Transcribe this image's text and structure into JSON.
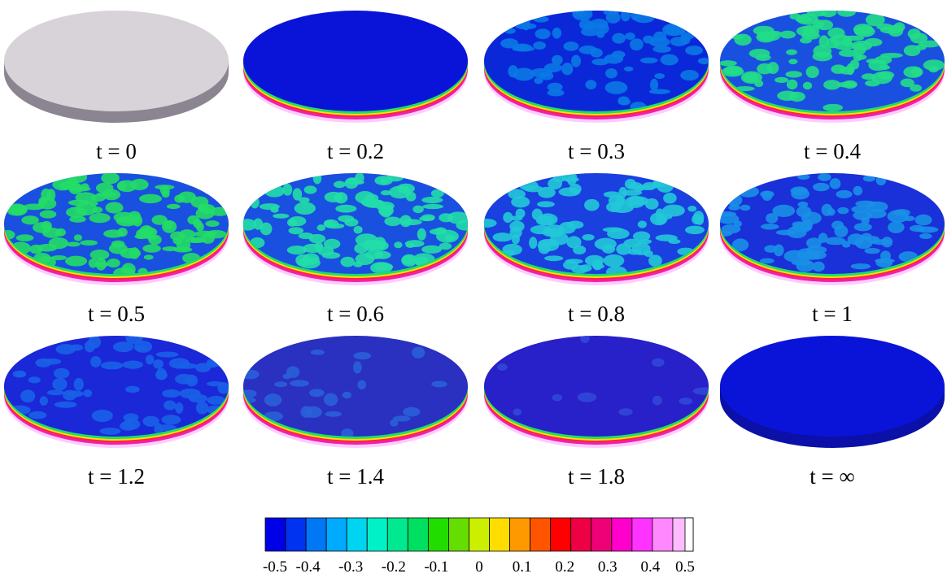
{
  "panels": [
    {
      "label": "t = 0"
    },
    {
      "label": "t = 0.2"
    },
    {
      "label": "t = 0.3"
    },
    {
      "label": "t = 0.4"
    },
    {
      "label": "t = 0.5"
    },
    {
      "label": "t = 0.6"
    },
    {
      "label": "t = 0.8"
    },
    {
      "label": "t = 1"
    },
    {
      "label": "t = 1.2"
    },
    {
      "label": "t = 1.4"
    },
    {
      "label": "t = 1.8"
    },
    {
      "label": "t = ∞"
    }
  ],
  "colorbar": {
    "lim": [
      -0.5,
      0.5
    ],
    "ticks": [
      -0.5,
      -0.4,
      -0.3,
      -0.2,
      -0.1,
      0,
      0.1,
      0.2,
      0.3,
      0.4,
      0.5
    ],
    "colors": [
      "#0000e6",
      "#0033f0",
      "#0077f5",
      "#00aaff",
      "#00d4f0",
      "#00f0c8",
      "#00e890",
      "#00e060",
      "#22dd00",
      "#66dd00",
      "#ccee00",
      "#ffdd00",
      "#ff9900",
      "#ff5500",
      "#ff0000",
      "#ee0044",
      "#ee0077",
      "#ff00cc",
      "#ff33ff",
      "#ff88ff",
      "#ffbbff"
    ]
  }
}
